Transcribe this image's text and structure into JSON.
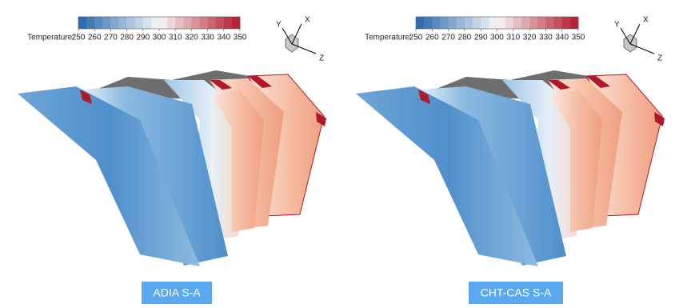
{
  "panels": [
    {
      "colorbar": {
        "label": "Temperature:",
        "ticks": [
          250,
          260,
          270,
          280,
          290,
          300,
          310,
          320,
          330,
          340,
          350
        ]
      },
      "axes": {
        "x": "X",
        "y": "Y",
        "z": "Z"
      },
      "caption": "ADIA S-A"
    },
    {
      "colorbar": {
        "label": "Temperature:",
        "ticks": [
          250,
          260,
          270,
          280,
          290,
          300,
          310,
          320,
          330,
          340,
          350
        ]
      },
      "axes": {
        "x": "X",
        "y": "Y",
        "z": "Z"
      },
      "caption": "CHT-CAS S-A"
    }
  ]
}
